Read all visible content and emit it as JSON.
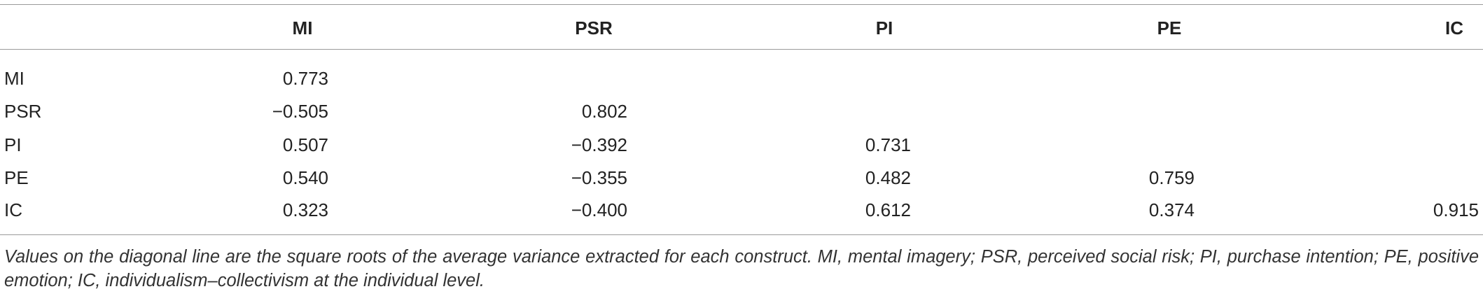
{
  "table": {
    "columns": [
      "MI",
      "PSR",
      "PI",
      "PE",
      "IC"
    ],
    "rows": [
      [
        "MI",
        "0.773"
      ],
      [
        "PSR",
        "−0.505",
        "0.802"
      ],
      [
        "PI",
        "0.507",
        "−0.392",
        "0.731"
      ],
      [
        "PE",
        "0.540",
        "−0.355",
        "0.482",
        "0.759"
      ],
      [
        "IC",
        "0.323",
        "−0.400",
        "0.612",
        "0.374",
        "0.915"
      ]
    ]
  },
  "footnote": "Values on the diagonal line are the square roots of the average variance extracted for each construct. MI, mental imagery; PSR, perceived social risk; PI, purchase intention; PE, positive emotion; IC, individualism–collectivism at the individual level."
}
